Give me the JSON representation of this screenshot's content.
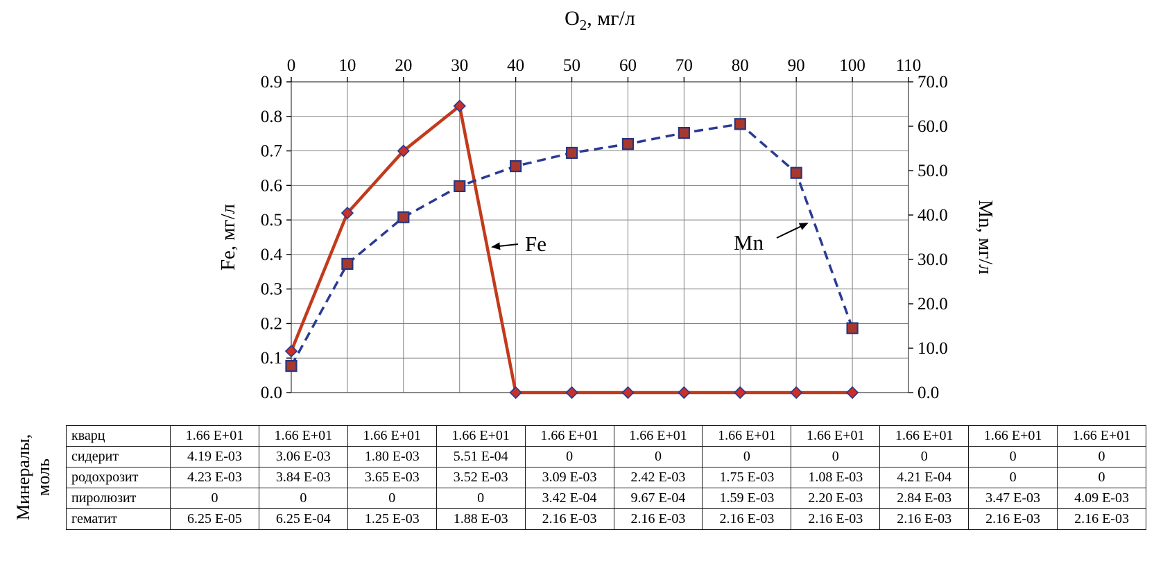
{
  "chart_data": {
    "type": "line",
    "title": {
      "pre": "O",
      "sub": "2",
      "post": ", мг/л"
    },
    "x_axis": {
      "min": 0,
      "max": 110,
      "ticks": [
        0,
        10,
        20,
        30,
        40,
        50,
        60,
        70,
        80,
        90,
        100,
        110
      ]
    },
    "y_left": {
      "label": "Fe, мг/л",
      "min": 0,
      "max": 0.9,
      "tick_values": [
        0,
        0.1,
        0.2,
        0.3,
        0.4,
        0.5,
        0.6,
        0.7,
        0.8,
        0.9
      ],
      "tick_labels": [
        "0.0",
        "0.1",
        "0.2",
        "0.3",
        "0.4",
        "0.5",
        "0.6",
        "0.7",
        "0.8",
        "0.9"
      ]
    },
    "y_right": {
      "label": "Mn, мг/л",
      "min": 0,
      "max": 70,
      "tick_values": [
        0,
        10,
        20,
        30,
        40,
        50,
        60,
        70
      ],
      "tick_labels": [
        "0.0",
        "10.0",
        "20.0",
        "30.0",
        "40.0",
        "50.0",
        "60.0",
        "70.0"
      ]
    },
    "grid": true,
    "legend_position": "none",
    "x": [
      0,
      10,
      20,
      30,
      40,
      50,
      60,
      70,
      80,
      90,
      100
    ],
    "series": [
      {
        "name": "Fe",
        "axis": "left",
        "style": "solid",
        "marker": "diamond",
        "color": "#c23a1c",
        "marker_fill": "#cd2f26",
        "marker_stroke": "#2a3b8f",
        "width": 4.5,
        "values": [
          0.12,
          0.52,
          0.7,
          0.83,
          0,
          0,
          0,
          0,
          0,
          0,
          0
        ]
      },
      {
        "name": "Mn",
        "axis": "right",
        "style": "dashed",
        "marker": "square",
        "color": "#2b3a94",
        "marker_fill": "#a8382e",
        "marker_stroke": "#27357e",
        "width": 3.5,
        "values": [
          6.0,
          29.0,
          39.5,
          46.5,
          51.0,
          54.0,
          56.0,
          58.5,
          60.5,
          49.5,
          14.5
        ]
      }
    ],
    "annotations": [
      {
        "text": "Fe",
        "series": "Fe"
      },
      {
        "text": "Mn",
        "series": "Mn"
      }
    ]
  },
  "table": {
    "side_label_lines": [
      "Минералы,",
      "моль"
    ],
    "rows": [
      {
        "label": "кварц",
        "values": [
          "1.66 E+01",
          "1.66 E+01",
          "1.66 E+01",
          "1.66 E+01",
          "1.66 E+01",
          "1.66 E+01",
          "1.66 E+01",
          "1.66 E+01",
          "1.66 E+01",
          "1.66 E+01",
          "1.66 E+01"
        ]
      },
      {
        "label": "сидерит",
        "values": [
          "4.19 E-03",
          "3.06 E-03",
          "1.80 E-03",
          "5.51 E-04",
          "0",
          "0",
          "0",
          "0",
          "0",
          "0",
          "0"
        ]
      },
      {
        "label": "родохрозит",
        "values": [
          "4.23 E-03",
          "3.84 E-03",
          "3.65 E-03",
          "3.52 E-03",
          "3.09 E-03",
          "2.42 E-03",
          "1.75 E-03",
          "1.08 E-03",
          "4.21 E-04",
          "0",
          "0"
        ]
      },
      {
        "label": "пиролюзит",
        "values": [
          "0",
          "0",
          "0",
          "0",
          "3.42 E-04",
          "9.67 E-04",
          "1.59 E-03",
          "2.20 E-03",
          "2.84 E-03",
          "3.47 E-03",
          "4.09 E-03"
        ]
      },
      {
        "label": "гематит",
        "values": [
          "6.25 E-05",
          "6.25 E-04",
          "1.25 E-03",
          "1.88 E-03",
          "2.16 E-03",
          "2.16 E-03",
          "2.16 E-03",
          "2.16 E-03",
          "2.16 E-03",
          "2.16 E-03",
          "2.16 E-03"
        ]
      }
    ]
  }
}
